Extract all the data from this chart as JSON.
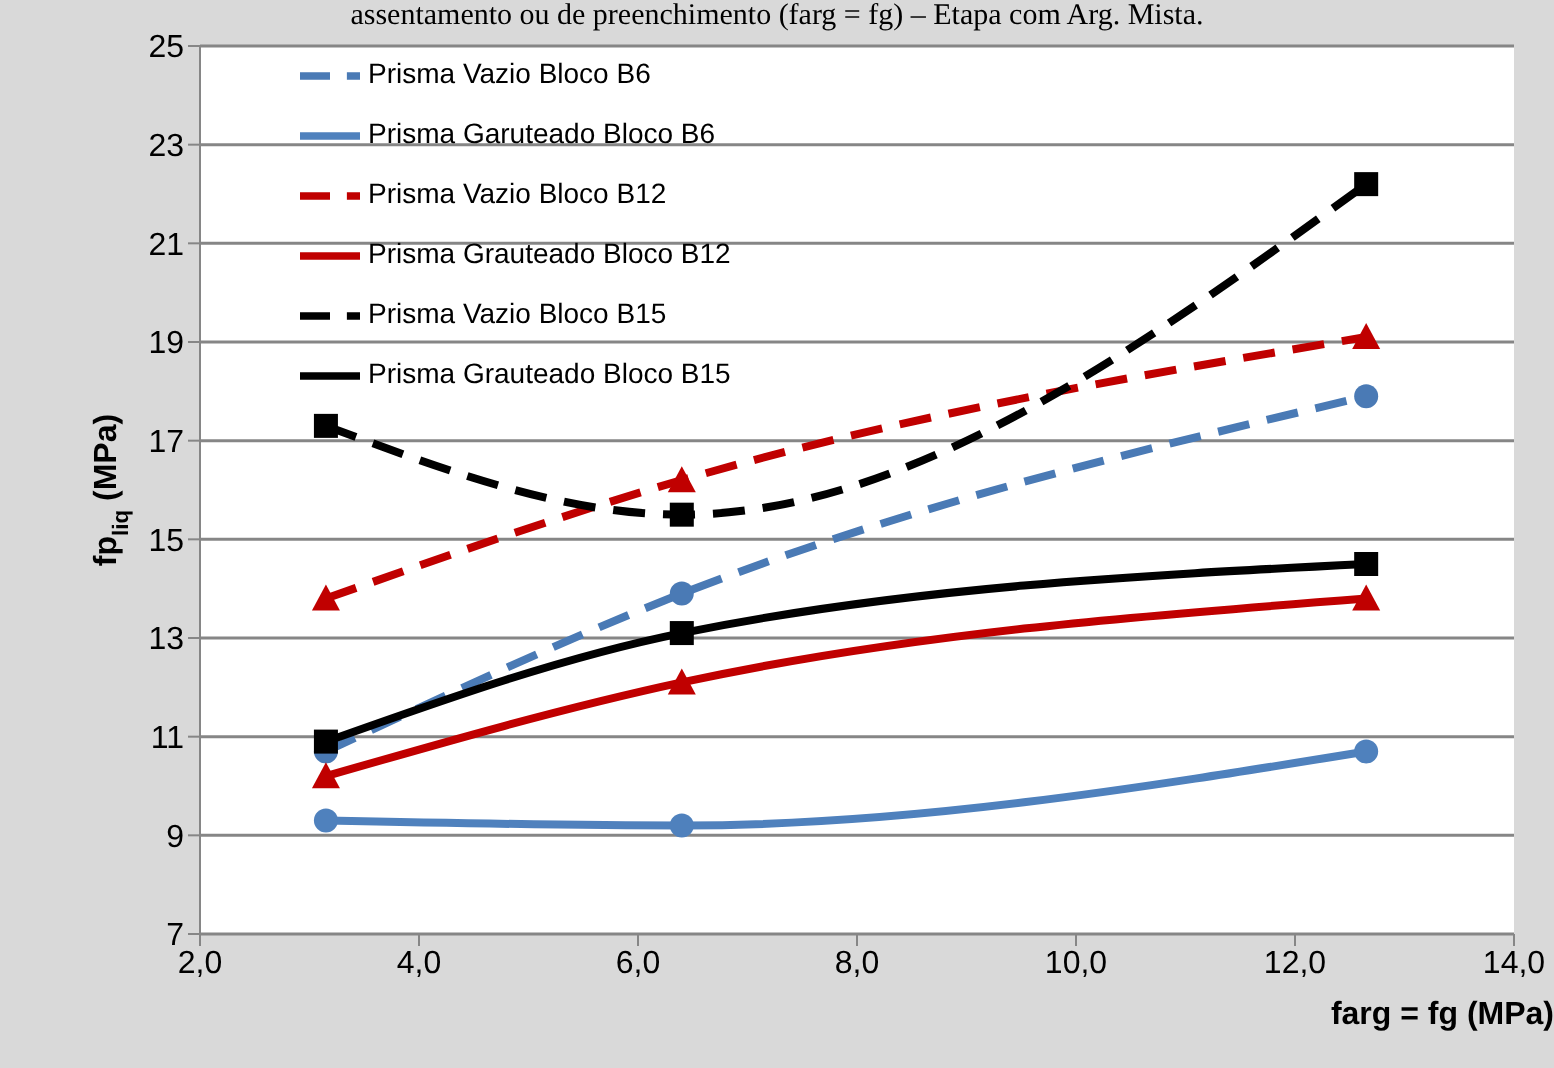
{
  "chart_data": {
    "type": "line",
    "title": "assentamento ou de preenchimento (farg = fg) – Etapa com Arg. Mista.",
    "xlabel": "farg = fg (MPa)",
    "ylabel": "fp$_{liq}$ (MPa)",
    "x": [
      3.15,
      6.4,
      12.65
    ],
    "xlim": [
      2,
      14
    ],
    "xticks": [
      {
        "value": 2,
        "label": "2,0"
      },
      {
        "value": 4,
        "label": "4,0"
      },
      {
        "value": 6,
        "label": "6,0"
      },
      {
        "value": 8,
        "label": "8,0"
      },
      {
        "value": 10,
        "label": "10,0"
      },
      {
        "value": 12,
        "label": "12,0"
      },
      {
        "value": 14,
        "label": "14,0"
      }
    ],
    "ylim": [
      7,
      25
    ],
    "yticks": [
      7,
      9,
      11,
      13,
      15,
      17,
      19,
      21,
      23,
      25
    ],
    "grid": "y",
    "legend": "top left",
    "series": [
      {
        "name": "Prisma Vazio Bloco B6",
        "color": "#4a7ab5",
        "values": [
          10.7,
          13.9,
          17.9
        ],
        "marker": "circle",
        "line_style": "dashed"
      },
      {
        "name": "Prisma Garuteado Bloco B6",
        "color": "#4f81bd",
        "values": [
          9.3,
          9.2,
          10.7
        ],
        "marker": "circle",
        "line_style": "solid"
      },
      {
        "name": "Prisma Vazio Bloco B12",
        "color": "#c00000",
        "values": [
          13.8,
          16.2,
          19.1
        ],
        "marker": "triangle",
        "line_style": "dashed"
      },
      {
        "name": "Prisma Grauteado Bloco B12",
        "color": "#c00000",
        "values": [
          10.2,
          12.1,
          13.8
        ],
        "marker": "triangle",
        "line_style": "solid"
      },
      {
        "name": "Prisma Vazio Bloco B15",
        "color": "#000000",
        "values": [
          17.3,
          15.5,
          22.2
        ],
        "marker": "square",
        "line_style": "dashed"
      },
      {
        "name": "Prisma Grauteado Bloco B15",
        "color": "#000000",
        "values": [
          10.9,
          13.1,
          14.5
        ],
        "marker": "square",
        "line_style": "solid"
      }
    ]
  }
}
